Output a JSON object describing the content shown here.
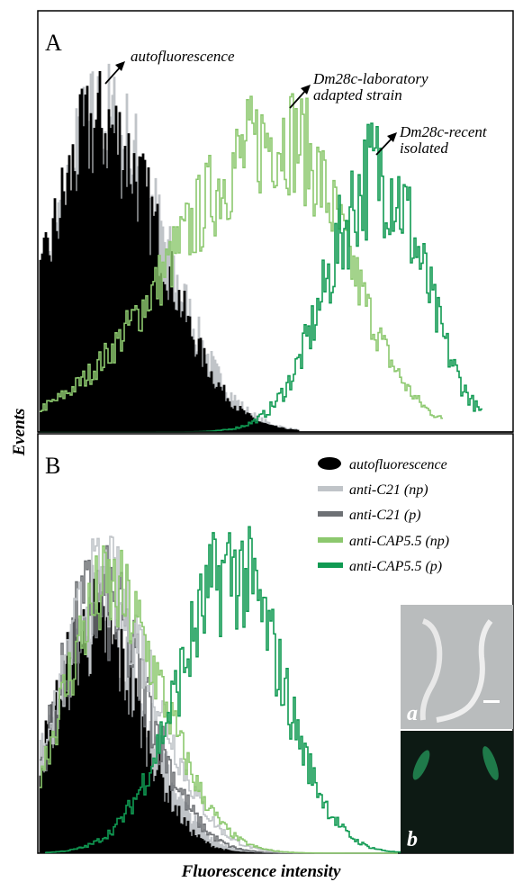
{
  "panels": [
    {
      "label": "A",
      "annotations": [
        {
          "lines": [
            "autofluorescence"
          ]
        },
        {
          "lines": [
            "Dm28c-laboratory",
            "adapted strain"
          ]
        },
        {
          "lines": [
            "Dm28c-recent",
            "isolated"
          ]
        }
      ]
    },
    {
      "label": "B",
      "legend": [
        "autofluorescence",
        "anti-C21 (np)",
        "anti-C21 (p)",
        "anti-CAP5.5 (np)",
        "anti-CAP5.5 (p)"
      ],
      "inset_labels": [
        "a",
        "b"
      ]
    }
  ],
  "y_label": "Events",
  "x_label": "Fluorescence intensity"
}
